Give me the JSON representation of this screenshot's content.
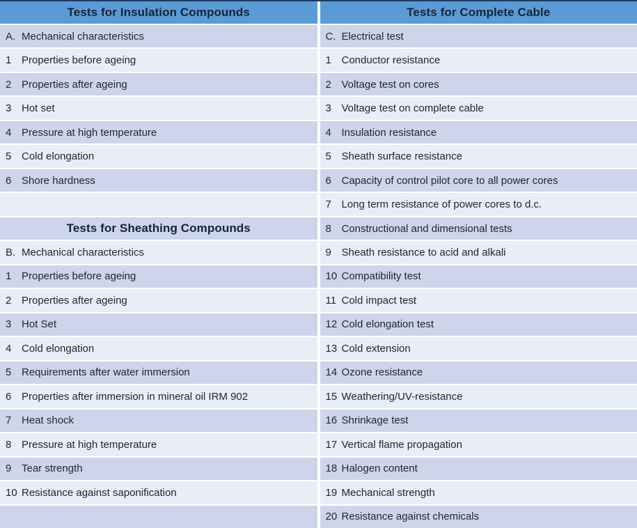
{
  "colors": {
    "header_bg": "#5b9bd5",
    "header_text": "#15243c",
    "row_dark": "#ccd5e9",
    "row_light": "#e9edf6",
    "top_line": "#1b3a63",
    "body_text": "#23262e",
    "background": "#ffffff"
  },
  "table": {
    "left": {
      "header": "Tests for Insulation Compounds",
      "rows": [
        {
          "type": "item",
          "shade": "dark",
          "num": "A.",
          "label": "Mechanical characteristics"
        },
        {
          "type": "item",
          "shade": "light",
          "num": "1",
          "label": "Properties before ageing"
        },
        {
          "type": "item",
          "shade": "dark",
          "num": "2",
          "label": "Properties after ageing"
        },
        {
          "type": "item",
          "shade": "light",
          "num": "3",
          "label": "Hot set"
        },
        {
          "type": "item",
          "shade": "dark",
          "num": "4",
          "label": "Pressure at high temperature"
        },
        {
          "type": "item",
          "shade": "light",
          "num": "5",
          "label": "Cold elongation"
        },
        {
          "type": "item",
          "shade": "dark",
          "num": "6",
          "label": "Shore hardness"
        },
        {
          "type": "empty",
          "shade": "light"
        },
        {
          "type": "subheader",
          "shade": "dark",
          "label": "Tests for Sheathing Compounds"
        },
        {
          "type": "item",
          "shade": "light",
          "num": "B.",
          "label": "Mechanical characteristics"
        },
        {
          "type": "item",
          "shade": "dark",
          "num": "1",
          "label": "Properties before ageing"
        },
        {
          "type": "item",
          "shade": "light",
          "num": "2",
          "label": "Properties after ageing"
        },
        {
          "type": "item",
          "shade": "dark",
          "num": "3",
          "label": "Hot Set"
        },
        {
          "type": "item",
          "shade": "light",
          "num": "4",
          "label": "Cold elongation"
        },
        {
          "type": "item",
          "shade": "dark",
          "num": "5",
          "label": "Requirements after water immersion"
        },
        {
          "type": "item",
          "shade": "light",
          "num": "6",
          "label": "Properties after immersion in mineral oil IRM 902"
        },
        {
          "type": "item",
          "shade": "dark",
          "num": "7",
          "label": "Heat shock"
        },
        {
          "type": "item",
          "shade": "light",
          "num": "8",
          "label": "Pressure at high temperature"
        },
        {
          "type": "item",
          "shade": "dark",
          "num": "9",
          "label": "Tear strength"
        },
        {
          "type": "item",
          "shade": "light",
          "num": "10",
          "label": "Resistance against saponification"
        },
        {
          "type": "empty",
          "shade": "dark"
        }
      ]
    },
    "right": {
      "header": "Tests for Complete Cable",
      "rows": [
        {
          "type": "item",
          "shade": "dark",
          "num": "C.",
          "label": "Electrical test"
        },
        {
          "type": "item",
          "shade": "light",
          "num": "1",
          "label": "Conductor resistance"
        },
        {
          "type": "item",
          "shade": "dark",
          "num": "2",
          "label": "Voltage test on cores"
        },
        {
          "type": "item",
          "shade": "light",
          "num": "3",
          "label": "Voltage test on complete cable"
        },
        {
          "type": "item",
          "shade": "dark",
          "num": "4",
          "label": "Insulation resistance"
        },
        {
          "type": "item",
          "shade": "light",
          "num": "5",
          "label": "Sheath surface resistance"
        },
        {
          "type": "item",
          "shade": "dark",
          "num": "6",
          "label": "Capacity of control pilot core to all power cores"
        },
        {
          "type": "item",
          "shade": "light",
          "num": "7",
          "label": "Long term resistance of power cores to d.c."
        },
        {
          "type": "item",
          "shade": "dark",
          "num": "8",
          "label": "Constructional and dimensional tests"
        },
        {
          "type": "item",
          "shade": "light",
          "num": "9",
          "label": "Sheath resistance to acid and alkali"
        },
        {
          "type": "item",
          "shade": "dark",
          "num": "10",
          "label": "Compatibility test"
        },
        {
          "type": "item",
          "shade": "light",
          "num": "11",
          "label": "Cold impact test"
        },
        {
          "type": "item",
          "shade": "dark",
          "num": "12",
          "label": "Cold elongation test"
        },
        {
          "type": "item",
          "shade": "light",
          "num": "13",
          "label": "Cold extension"
        },
        {
          "type": "item",
          "shade": "dark",
          "num": "14",
          "label": "Ozone resistance"
        },
        {
          "type": "item",
          "shade": "light",
          "num": "15",
          "label": "Weathering/UV-resistance"
        },
        {
          "type": "item",
          "shade": "dark",
          "num": "16",
          "label": "Shrinkage test"
        },
        {
          "type": "item",
          "shade": "light",
          "num": "17",
          "label": "Vertical flame propagation"
        },
        {
          "type": "item",
          "shade": "dark",
          "num": "18",
          "label": "Halogen content"
        },
        {
          "type": "item",
          "shade": "light",
          "num": "19",
          "label": "Mechanical strength"
        },
        {
          "type": "item",
          "shade": "dark",
          "num": "20",
          "label": "Resistance against chemicals"
        }
      ]
    }
  }
}
